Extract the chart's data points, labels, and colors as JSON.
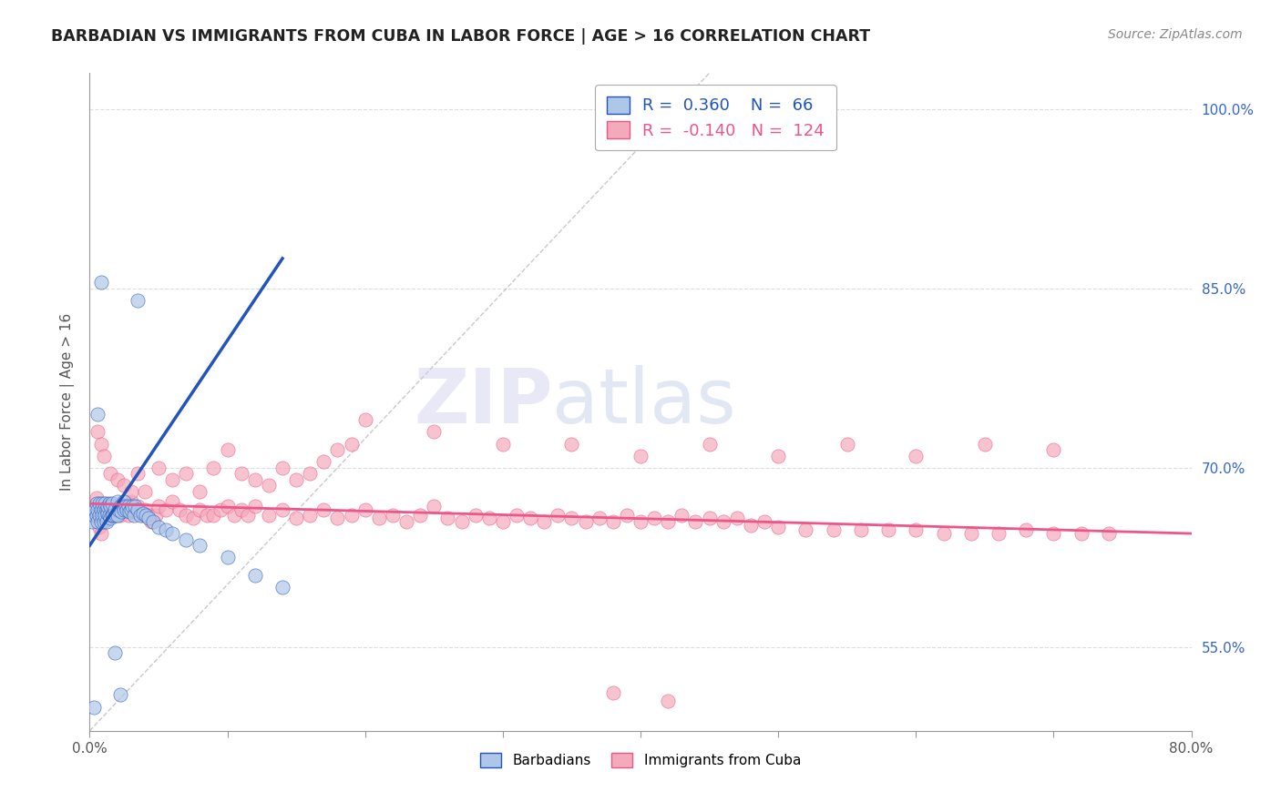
{
  "title": "BARBADIAN VS IMMIGRANTS FROM CUBA IN LABOR FORCE | AGE > 16 CORRELATION CHART",
  "source": "Source: ZipAtlas.com",
  "ylabel": "In Labor Force | Age > 16",
  "xmin": 0.0,
  "xmax": 0.8,
  "ymin": 0.48,
  "ymax": 1.03,
  "yticks": [
    0.55,
    0.7,
    0.85,
    1.0
  ],
  "ytick_labels": [
    "55.0%",
    "70.0%",
    "85.0%",
    "100.0%"
  ],
  "xticks": [
    0.0,
    0.1,
    0.2,
    0.3,
    0.4,
    0.5,
    0.6,
    0.7,
    0.8
  ],
  "xtick_labels": [
    "0.0%",
    "",
    "",
    "",
    "",
    "",
    "",
    "",
    "80.0%"
  ],
  "blue_R": 0.36,
  "blue_N": 66,
  "pink_R": -0.14,
  "pink_N": 124,
  "blue_color": "#AEC6E8",
  "pink_color": "#F4AABB",
  "blue_line_color": "#2255BB",
  "pink_line_color": "#EE5588",
  "watermark_zip": "ZIP",
  "watermark_atlas": "atlas",
  "blue_scatter_x": [
    0.002,
    0.003,
    0.004,
    0.005,
    0.005,
    0.006,
    0.006,
    0.007,
    0.007,
    0.008,
    0.008,
    0.009,
    0.009,
    0.01,
    0.01,
    0.011,
    0.011,
    0.012,
    0.012,
    0.013,
    0.013,
    0.014,
    0.014,
    0.015,
    0.015,
    0.016,
    0.016,
    0.017,
    0.018,
    0.019,
    0.02,
    0.02,
    0.021,
    0.022,
    0.023,
    0.024,
    0.025,
    0.025,
    0.026,
    0.027,
    0.028,
    0.029,
    0.03,
    0.031,
    0.032,
    0.033,
    0.035,
    0.037,
    0.039,
    0.041,
    0.043,
    0.046,
    0.05,
    0.055,
    0.06,
    0.07,
    0.08,
    0.1,
    0.12,
    0.14,
    0.035,
    0.018,
    0.022,
    0.008,
    0.003,
    0.006
  ],
  "blue_scatter_y": [
    0.655,
    0.66,
    0.665,
    0.66,
    0.67,
    0.655,
    0.665,
    0.66,
    0.67,
    0.655,
    0.665,
    0.66,
    0.67,
    0.655,
    0.665,
    0.66,
    0.67,
    0.655,
    0.665,
    0.662,
    0.668,
    0.66,
    0.67,
    0.658,
    0.668,
    0.66,
    0.67,
    0.66,
    0.665,
    0.66,
    0.66,
    0.672,
    0.665,
    0.668,
    0.663,
    0.668,
    0.665,
    0.672,
    0.668,
    0.665,
    0.668,
    0.663,
    0.665,
    0.668,
    0.66,
    0.668,
    0.665,
    0.66,
    0.662,
    0.66,
    0.658,
    0.655,
    0.65,
    0.648,
    0.645,
    0.64,
    0.635,
    0.625,
    0.61,
    0.6,
    0.84,
    0.545,
    0.51,
    0.855,
    0.5,
    0.745
  ],
  "pink_scatter_x": [
    0.005,
    0.006,
    0.007,
    0.008,
    0.009,
    0.01,
    0.012,
    0.014,
    0.016,
    0.018,
    0.02,
    0.022,
    0.025,
    0.028,
    0.03,
    0.032,
    0.035,
    0.038,
    0.04,
    0.042,
    0.045,
    0.048,
    0.05,
    0.055,
    0.06,
    0.065,
    0.07,
    0.075,
    0.08,
    0.085,
    0.09,
    0.095,
    0.1,
    0.105,
    0.11,
    0.115,
    0.12,
    0.13,
    0.14,
    0.15,
    0.16,
    0.17,
    0.18,
    0.19,
    0.2,
    0.21,
    0.22,
    0.23,
    0.24,
    0.25,
    0.26,
    0.27,
    0.28,
    0.29,
    0.3,
    0.31,
    0.32,
    0.33,
    0.34,
    0.35,
    0.36,
    0.37,
    0.38,
    0.39,
    0.4,
    0.41,
    0.42,
    0.43,
    0.44,
    0.45,
    0.46,
    0.47,
    0.48,
    0.49,
    0.5,
    0.52,
    0.54,
    0.56,
    0.58,
    0.6,
    0.62,
    0.64,
    0.66,
    0.68,
    0.7,
    0.72,
    0.74,
    0.006,
    0.008,
    0.01,
    0.015,
    0.02,
    0.025,
    0.03,
    0.035,
    0.04,
    0.05,
    0.06,
    0.07,
    0.08,
    0.09,
    0.1,
    0.11,
    0.12,
    0.13,
    0.14,
    0.15,
    0.16,
    0.17,
    0.18,
    0.19,
    0.2,
    0.25,
    0.3,
    0.35,
    0.4,
    0.45,
    0.5,
    0.55,
    0.6,
    0.65,
    0.7,
    0.38,
    0.42
  ],
  "pink_scatter_y": [
    0.675,
    0.66,
    0.65,
    0.645,
    0.655,
    0.66,
    0.67,
    0.665,
    0.668,
    0.662,
    0.668,
    0.66,
    0.665,
    0.66,
    0.672,
    0.665,
    0.668,
    0.66,
    0.665,
    0.66,
    0.655,
    0.66,
    0.668,
    0.665,
    0.672,
    0.665,
    0.66,
    0.658,
    0.665,
    0.66,
    0.66,
    0.665,
    0.668,
    0.66,
    0.665,
    0.66,
    0.668,
    0.66,
    0.665,
    0.658,
    0.66,
    0.665,
    0.658,
    0.66,
    0.665,
    0.658,
    0.66,
    0.655,
    0.66,
    0.668,
    0.658,
    0.655,
    0.66,
    0.658,
    0.655,
    0.66,
    0.658,
    0.655,
    0.66,
    0.658,
    0.655,
    0.658,
    0.655,
    0.66,
    0.655,
    0.658,
    0.655,
    0.66,
    0.655,
    0.658,
    0.655,
    0.658,
    0.652,
    0.655,
    0.65,
    0.648,
    0.648,
    0.648,
    0.648,
    0.648,
    0.645,
    0.645,
    0.645,
    0.648,
    0.645,
    0.645,
    0.645,
    0.73,
    0.72,
    0.71,
    0.695,
    0.69,
    0.685,
    0.68,
    0.695,
    0.68,
    0.7,
    0.69,
    0.695,
    0.68,
    0.7,
    0.715,
    0.695,
    0.69,
    0.685,
    0.7,
    0.69,
    0.695,
    0.705,
    0.715,
    0.72,
    0.74,
    0.73,
    0.72,
    0.72,
    0.71,
    0.72,
    0.71,
    0.72,
    0.71,
    0.72,
    0.715,
    0.512,
    0.505
  ]
}
